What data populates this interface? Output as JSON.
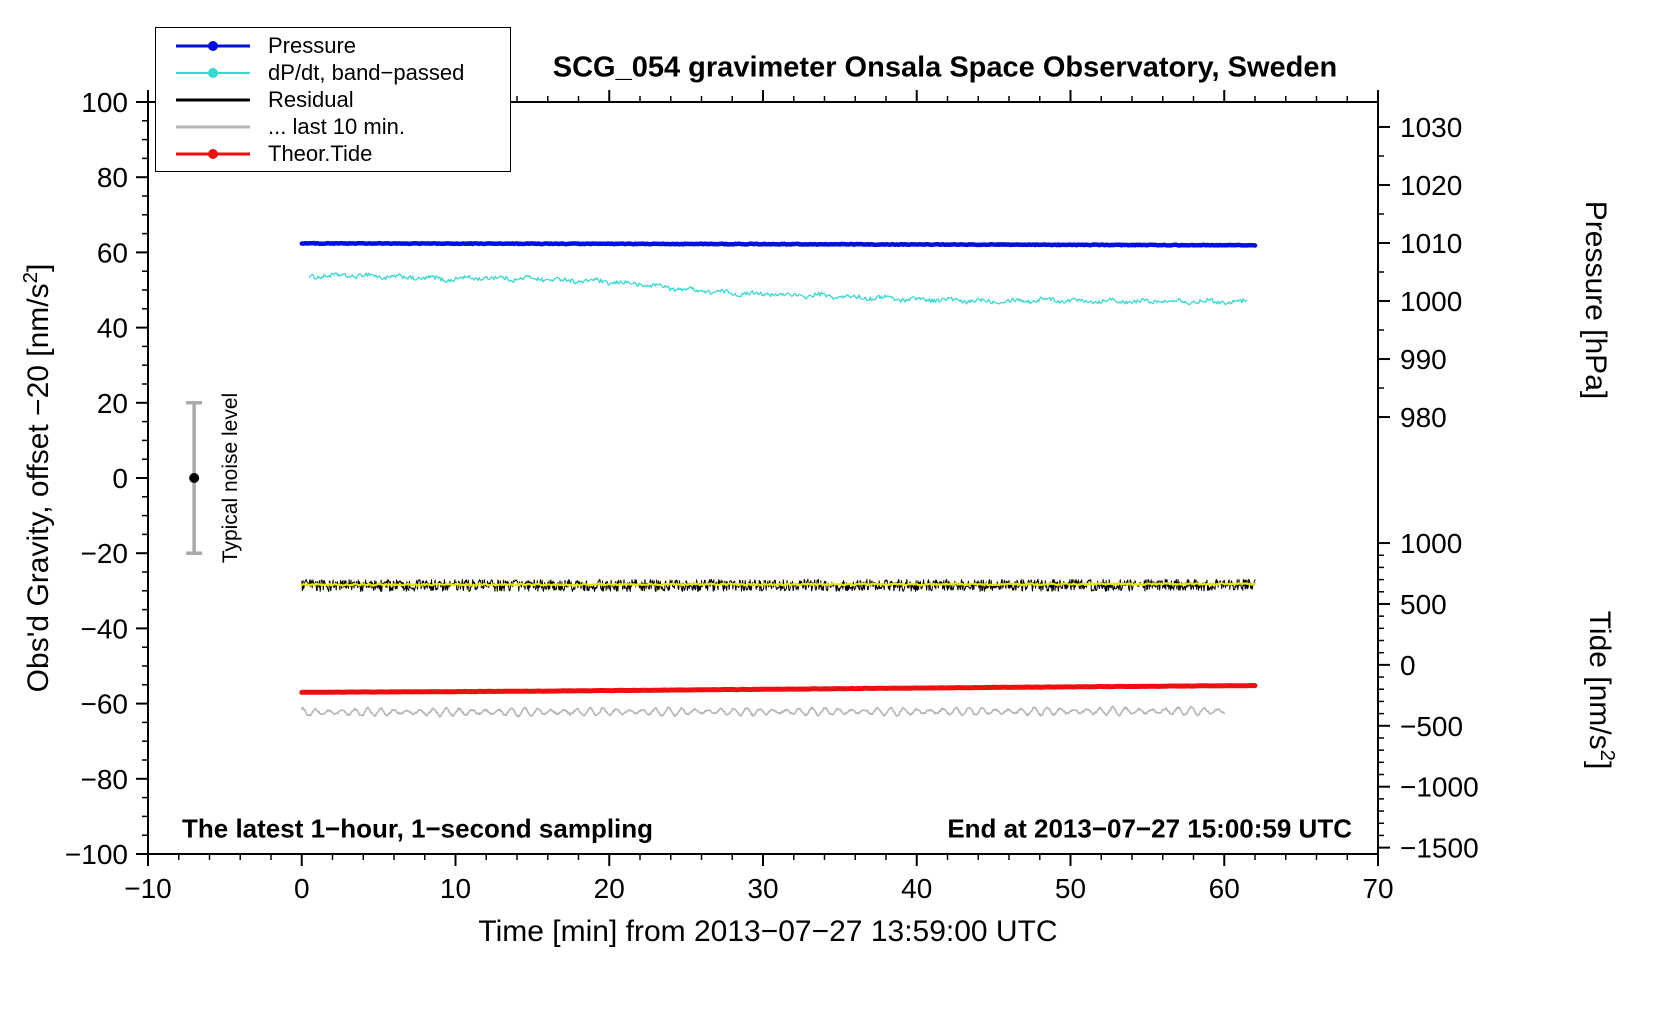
{
  "header": {
    "title": "SCG_054 gravimeter Onsala Space Observatory, Sweden"
  },
  "annotations": {
    "bottom_left": "The latest 1−hour, 1−second sampling",
    "bottom_right": "End at 2013−07−27 15:00:59 UTC"
  },
  "legend": [
    {
      "key": "pressure",
      "label": "Pressure",
      "color": "#0010dd",
      "marker": true,
      "sample_width": 3
    },
    {
      "key": "dpdt",
      "label": "dP/dt, band−passed",
      "color": "#38d8d0",
      "marker": true,
      "sample_width": 2
    },
    {
      "key": "residual",
      "label": "Residual",
      "color": "#000000",
      "marker": false,
      "sample_width": 3
    },
    {
      "key": "last10",
      "label": "... last 10 min.",
      "color": "#b5b5b5",
      "marker": false,
      "sample_width": 3
    },
    {
      "key": "tide",
      "label": "Theor.Tide",
      "color": "#ee1010",
      "marker": true,
      "sample_width": 3
    }
  ],
  "chart_data": {
    "type": "line",
    "title": "SCG_054 gravimeter Onsala Space Observatory, Sweden",
    "x_axis": {
      "label": "Time [min] from 2013−07−27 13:59:00 UTC",
      "min": -10,
      "max": 70,
      "minor_step": 2,
      "major_ticks": [
        {
          "v": -10,
          "label": "−10"
        },
        {
          "v": 0,
          "label": "0"
        },
        {
          "v": 10,
          "label": "10"
        },
        {
          "v": 20,
          "label": "20"
        },
        {
          "v": 30,
          "label": "30"
        },
        {
          "v": 40,
          "label": "40"
        },
        {
          "v": 50,
          "label": "50"
        },
        {
          "v": 60,
          "label": "60"
        },
        {
          "v": 70,
          "label": "70"
        }
      ]
    },
    "y_axis": {
      "label_pre": "Obs'd Gravity, offset −20 [nm/s",
      "label_sup": "2",
      "label_post": "]",
      "min": -100,
      "max": 100,
      "minor_step": 5,
      "major_ticks": [
        {
          "v": 100,
          "label": "100"
        },
        {
          "v": 80,
          "label": "80"
        },
        {
          "v": 60,
          "label": "60"
        },
        {
          "v": 40,
          "label": "40"
        },
        {
          "v": 20,
          "label": "20"
        },
        {
          "v": 0,
          "label": "0"
        },
        {
          "v": -20,
          "label": "−20"
        },
        {
          "v": -40,
          "label": "−40"
        },
        {
          "v": -60,
          "label": "−60"
        },
        {
          "v": -80,
          "label": "−80"
        },
        {
          "v": -100,
          "label": "−100"
        }
      ]
    },
    "pressure_axis": {
      "label_text": "Pressure [hPa]",
      "ref_value": 1010,
      "ref_left_units": 62.5,
      "left_units_per_hpa": 1.543,
      "minor_step": 5,
      "major_ticks": [
        {
          "v": 1030,
          "label": "1030"
        },
        {
          "v": 1020,
          "label": "1020"
        },
        {
          "v": 1010,
          "label": "1010"
        },
        {
          "v": 1000,
          "label": "1000"
        },
        {
          "v": 990,
          "label": "990"
        },
        {
          "v": 980,
          "label": "980"
        }
      ]
    },
    "tide_axis": {
      "label_pre": "Tide [nm/s",
      "label_sup": "2",
      "label_post": "]",
      "ref_value": 0,
      "ref_left_units": -49.7,
      "left_units_per_unit": 0.0324,
      "minor_step": 100,
      "major_ticks": [
        {
          "v": 1000,
          "label": "1000"
        },
        {
          "v": 500,
          "label": "500"
        },
        {
          "v": 0,
          "label": "0"
        },
        {
          "v": -500,
          "label": "−500"
        },
        {
          "v": -1000,
          "label": "−1000"
        },
        {
          "v": -1500,
          "label": "−1500"
        }
      ]
    },
    "noise_bar": {
      "x": -7,
      "center": 0,
      "half_range": 20,
      "label": "Typical noise level",
      "bar_color": "#aaaaaa",
      "dot_color": "#000000"
    },
    "series": [
      {
        "key": "dpdt",
        "name": "dP/dt, band−passed",
        "color": "#38d8d0",
        "width": 1.3,
        "x_range": [
          0.5,
          61.5
        ],
        "step": 0.08,
        "noise": 0.55,
        "osc": {
          "amp": 0.5,
          "period": 2.1
        },
        "anchors": [
          [
            0.5,
            53.6
          ],
          [
            3,
            53.9
          ],
          [
            6,
            53.5
          ],
          [
            9,
            52.9
          ],
          [
            12,
            53.2
          ],
          [
            15,
            53.0
          ],
          [
            18,
            52.5
          ],
          [
            21,
            51.9
          ],
          [
            24,
            50.6
          ],
          [
            27,
            49.4
          ],
          [
            30,
            48.9
          ],
          [
            33,
            48.5
          ],
          [
            36,
            48.1
          ],
          [
            39,
            47.7
          ],
          [
            42,
            47.3
          ],
          [
            45,
            47.0
          ],
          [
            48,
            47.4
          ],
          [
            51,
            47.2
          ],
          [
            54,
            46.9
          ],
          [
            57,
            47.1
          ],
          [
            61.5,
            46.8
          ]
        ]
      },
      {
        "key": "pressure",
        "name": "Pressure",
        "color": "#0010dd",
        "width": 4.5,
        "x_range": [
          0,
          62
        ],
        "step": 0.1,
        "noise": 0.1,
        "anchors": [
          [
            0,
            62.4
          ],
          [
            30,
            62.2
          ],
          [
            62,
            61.9
          ]
        ]
      },
      {
        "key": "residual",
        "name": "Residual",
        "color": "#000000",
        "width": 1,
        "x_range": [
          0,
          62
        ],
        "step": 0.04,
        "noise": 1.6,
        "anchors": [
          [
            0,
            -28.6
          ],
          [
            62,
            -28.5
          ]
        ]
      },
      {
        "key": "residual-smooth",
        "name": "Residual smoothed",
        "color": "#e8e800",
        "width": 2.2,
        "x_range": [
          0,
          62
        ],
        "step": 0.1,
        "noise": 0.22,
        "anchors": [
          [
            0,
            -28.4
          ],
          [
            62,
            -28.2
          ]
        ]
      },
      {
        "key": "last10",
        "name": "... last 10 min.",
        "color": "#b5b5b5",
        "width": 1.6,
        "x_range": [
          0,
          60
        ],
        "step": 0.05,
        "noise": 0.25,
        "osc": {
          "amp": 1.05,
          "period": 0.85
        },
        "anchors": [
          [
            0,
            -62.3
          ],
          [
            60,
            -62.0
          ]
        ]
      },
      {
        "key": "tide",
        "name": "Theor.Tide",
        "color": "#ee1010",
        "width": 5,
        "x_range": [
          0,
          62
        ],
        "step": 0.2,
        "noise": 0.04,
        "anchors": [
          [
            0,
            -57.0
          ],
          [
            15,
            -56.7
          ],
          [
            30,
            -56.2
          ],
          [
            45,
            -55.7
          ],
          [
            62,
            -55.2
          ]
        ]
      }
    ]
  }
}
